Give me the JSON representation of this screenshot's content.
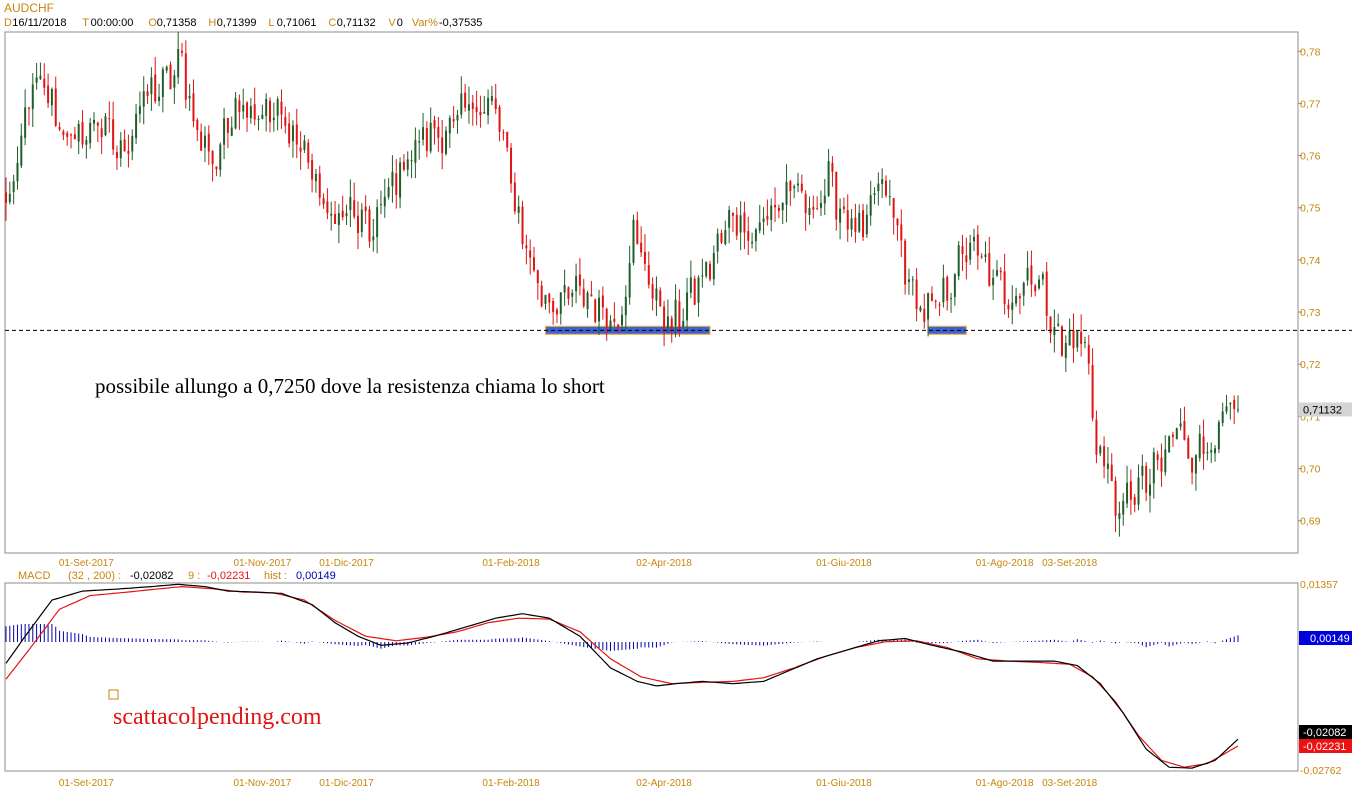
{
  "header": {
    "symbol": "AUDCHF",
    "items": [
      {
        "key": "D",
        "value": "16/11/2018"
      },
      {
        "key": "T",
        "value": "00:00:00"
      },
      {
        "key": "O",
        "value": "0,71358"
      },
      {
        "key": "H",
        "value": "0,71399"
      },
      {
        "key": "L",
        "value": "0,71061"
      },
      {
        "key": "C",
        "value": "0,71132"
      },
      {
        "key": "V",
        "value": "0"
      },
      {
        "key": "Var%",
        "value": "-0,37535"
      }
    ]
  },
  "annotations": {
    "comment": "possibile allungo a 0,7250 dove la resistenza chiama lo short",
    "watermark": "scattacolpending.com"
  },
  "macd_header": {
    "name": "MACD",
    "params": "(32 , 200) :",
    "macd_value": "-0,02082",
    "signal_period": "9 :",
    "signal_value": "-0,02231",
    "hist_label": "hist :",
    "hist_value": "0,00149"
  },
  "colors": {
    "up_candle": "#1f5e2b",
    "down_candle": "#e11414",
    "axis_text": "#c8860a",
    "macd_line": "#000000",
    "signal_line": "#e11414",
    "histogram": "#0000aa",
    "support_zone_fill": "#3a62d6",
    "support_zone_border": "#e8b24a"
  },
  "chart_data": [
    {
      "type": "candlestick",
      "title": "AUDCHF",
      "ylim": [
        0.684,
        0.7835
      ],
      "yticks": [
        "0,78",
        "0,77",
        "0,76",
        "0,75",
        "0,74",
        "0,73",
        "0,72",
        "0,71",
        "0,70",
        "0,69"
      ],
      "ytick_values": [
        0.78,
        0.77,
        0.76,
        0.75,
        0.74,
        0.73,
        0.72,
        0.71,
        0.7,
        0.69
      ],
      "last_price_label": "0,71132",
      "last_price": 0.71132,
      "x_labels": [
        "01-Set-2017",
        "01-Nov-2017",
        "01-Dic-2017",
        "01-Feb-2018",
        "02-Apr-2018",
        "01-Giu-2018",
        "01-Ago-2018",
        "03-Set-2018"
      ],
      "x_label_bar_index": [
        21,
        67,
        89,
        132,
        172,
        219,
        261,
        278
      ],
      "bar_count": 323,
      "support_level": 0.7265,
      "support_zones": [
        {
          "from_bar": 141,
          "to_bar": 184
        },
        {
          "from_bar": 241,
          "to_bar": 251
        }
      ],
      "close_anchors": [
        [
          0,
          0.75
        ],
        [
          3,
          0.757
        ],
        [
          6,
          0.772
        ],
        [
          10,
          0.773
        ],
        [
          14,
          0.766
        ],
        [
          18,
          0.762
        ],
        [
          24,
          0.767
        ],
        [
          30,
          0.76
        ],
        [
          36,
          0.771
        ],
        [
          42,
          0.774
        ],
        [
          46,
          0.778
        ],
        [
          50,
          0.764
        ],
        [
          55,
          0.759
        ],
        [
          60,
          0.771
        ],
        [
          65,
          0.769
        ],
        [
          72,
          0.767
        ],
        [
          78,
          0.761
        ],
        [
          84,
          0.748
        ],
        [
          90,
          0.749
        ],
        [
          95,
          0.745
        ],
        [
          100,
          0.753
        ],
        [
          105,
          0.76
        ],
        [
          110,
          0.764
        ],
        [
          116,
          0.765
        ],
        [
          122,
          0.77
        ],
        [
          128,
          0.769
        ],
        [
          132,
          0.755
        ],
        [
          135,
          0.745
        ],
        [
          140,
          0.733
        ],
        [
          145,
          0.732
        ],
        [
          150,
          0.734
        ],
        [
          155,
          0.731
        ],
        [
          160,
          0.728
        ],
        [
          164,
          0.745
        ],
        [
          166,
          0.741
        ],
        [
          170,
          0.732
        ],
        [
          174,
          0.727
        ],
        [
          178,
          0.732
        ],
        [
          184,
          0.739
        ],
        [
          190,
          0.749
        ],
        [
          195,
          0.745
        ],
        [
          200,
          0.749
        ],
        [
          205,
          0.754
        ],
        [
          210,
          0.749
        ],
        [
          215,
          0.755
        ],
        [
          219,
          0.749
        ],
        [
          224,
          0.744
        ],
        [
          228,
          0.755
        ],
        [
          232,
          0.749
        ],
        [
          236,
          0.735
        ],
        [
          240,
          0.73
        ],
        [
          244,
          0.731
        ],
        [
          248,
          0.738
        ],
        [
          252,
          0.743
        ],
        [
          258,
          0.736
        ],
        [
          263,
          0.733
        ],
        [
          268,
          0.738
        ],
        [
          272,
          0.732
        ],
        [
          276,
          0.723
        ],
        [
          280,
          0.726
        ],
        [
          283,
          0.72
        ],
        [
          285,
          0.704
        ],
        [
          288,
          0.7
        ],
        [
          291,
          0.69
        ],
        [
          294,
          0.696
        ],
        [
          298,
          0.697
        ],
        [
          302,
          0.701
        ],
        [
          306,
          0.708
        ],
        [
          310,
          0.703
        ],
        [
          315,
          0.705
        ],
        [
          319,
          0.71
        ],
        [
          322,
          0.7113
        ]
      ]
    },
    {
      "type": "macd",
      "title": "MACD",
      "ylim": [
        -0.02762,
        0.01357
      ],
      "yticks": [
        "0,01357",
        "-0,02762"
      ],
      "macd_label": "-0,02082",
      "signal_label": "-0,02231",
      "hist_label": "0,00149",
      "macd_anchors": [
        [
          0,
          -0.004
        ],
        [
          5,
          0.002
        ],
        [
          12,
          0.01
        ],
        [
          20,
          0.012
        ],
        [
          30,
          0.0125
        ],
        [
          38,
          0.013
        ],
        [
          45,
          0.0135
        ],
        [
          52,
          0.013
        ],
        [
          58,
          0.012
        ],
        [
          65,
          0.0118
        ],
        [
          72,
          0.0115
        ],
        [
          80,
          0.009
        ],
        [
          86,
          0.005
        ],
        [
          92,
          0.002
        ],
        [
          98,
          0.0
        ],
        [
          105,
          0.0005
        ],
        [
          112,
          0.002
        ],
        [
          120,
          0.004
        ],
        [
          128,
          0.006
        ],
        [
          135,
          0.007
        ],
        [
          142,
          0.006
        ],
        [
          150,
          0.002
        ],
        [
          158,
          -0.005
        ],
        [
          165,
          -0.008
        ],
        [
          170,
          -0.009
        ],
        [
          175,
          -0.0085
        ],
        [
          182,
          -0.008
        ],
        [
          190,
          -0.0085
        ],
        [
          198,
          -0.008
        ],
        [
          205,
          -0.0055
        ],
        [
          212,
          -0.003
        ],
        [
          220,
          -0.001
        ],
        [
          228,
          0.001
        ],
        [
          235,
          0.0015
        ],
        [
          242,
          0.0
        ],
        [
          250,
          -0.0015
        ],
        [
          258,
          -0.0035
        ],
        [
          266,
          -0.0035
        ],
        [
          274,
          -0.0035
        ],
        [
          280,
          -0.0045
        ],
        [
          286,
          -0.0085
        ],
        [
          292,
          -0.015
        ],
        [
          298,
          -0.023
        ],
        [
          304,
          -0.027
        ],
        [
          310,
          -0.0272
        ],
        [
          316,
          -0.0255
        ],
        [
          322,
          -0.0208
        ]
      ],
      "signal_anchors": [
        [
          0,
          -0.0075
        ],
        [
          6,
          -0.001
        ],
        [
          14,
          0.008
        ],
        [
          22,
          0.011
        ],
        [
          32,
          0.0118
        ],
        [
          40,
          0.0125
        ],
        [
          46,
          0.013
        ],
        [
          54,
          0.0125
        ],
        [
          62,
          0.0118
        ],
        [
          70,
          0.0116
        ],
        [
          78,
          0.01
        ],
        [
          86,
          0.0055
        ],
        [
          94,
          0.002
        ],
        [
          102,
          0.001
        ],
        [
          110,
          0.0018
        ],
        [
          118,
          0.003
        ],
        [
          126,
          0.005
        ],
        [
          134,
          0.006
        ],
        [
          142,
          0.0058
        ],
        [
          150,
          0.003
        ],
        [
          158,
          -0.003
        ],
        [
          166,
          -0.007
        ],
        [
          174,
          -0.0085
        ],
        [
          182,
          -0.0082
        ],
        [
          190,
          -0.008
        ],
        [
          198,
          -0.0072
        ],
        [
          206,
          -0.005
        ],
        [
          214,
          -0.0025
        ],
        [
          222,
          -0.0005
        ],
        [
          230,
          0.0008
        ],
        [
          238,
          0.001
        ],
        [
          246,
          -0.0005
        ],
        [
          254,
          -0.003
        ],
        [
          262,
          -0.0035
        ],
        [
          270,
          -0.0038
        ],
        [
          278,
          -0.0042
        ],
        [
          284,
          -0.007
        ],
        [
          290,
          -0.0125
        ],
        [
          296,
          -0.02
        ],
        [
          302,
          -0.0255
        ],
        [
          308,
          -0.027
        ],
        [
          314,
          -0.0262
        ],
        [
          322,
          -0.0223
        ]
      ]
    }
  ]
}
